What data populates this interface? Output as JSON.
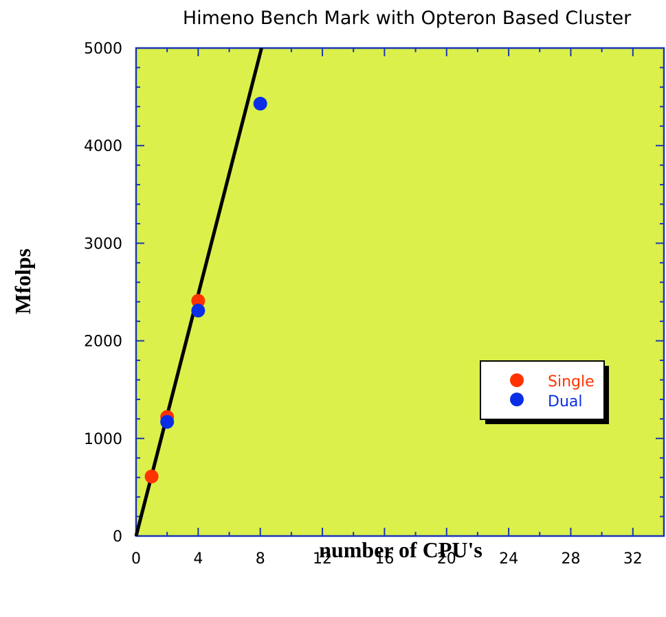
{
  "chart_data": {
    "type": "scatter",
    "title": "Himeno Bench Mark with Opteron Based Cluster",
    "xlabel": "number of CPU's",
    "ylabel": "Mfolps",
    "xlim": [
      0,
      34
    ],
    "ylim": [
      0,
      5000
    ],
    "x_ticks": [
      0,
      4,
      8,
      12,
      16,
      20,
      24,
      28,
      32
    ],
    "y_ticks": [
      0,
      1000,
      2000,
      3000,
      4000,
      5000
    ],
    "background_color": "#dbf04a",
    "grid": false,
    "legend_position": "center-right",
    "series": [
      {
        "name": "Single",
        "color": "#ff3300",
        "points": [
          [
            1,
            610
          ],
          [
            2,
            1220
          ],
          [
            4,
            2410
          ]
        ]
      },
      {
        "name": "Dual",
        "color": "#0a2ee6",
        "points": [
          [
            2,
            1170
          ],
          [
            4,
            2310
          ],
          [
            8,
            4430
          ]
        ]
      }
    ],
    "reference_line": {
      "color": "#000000",
      "points": [
        [
          0,
          0
        ],
        [
          8.08,
          5000
        ]
      ]
    }
  }
}
